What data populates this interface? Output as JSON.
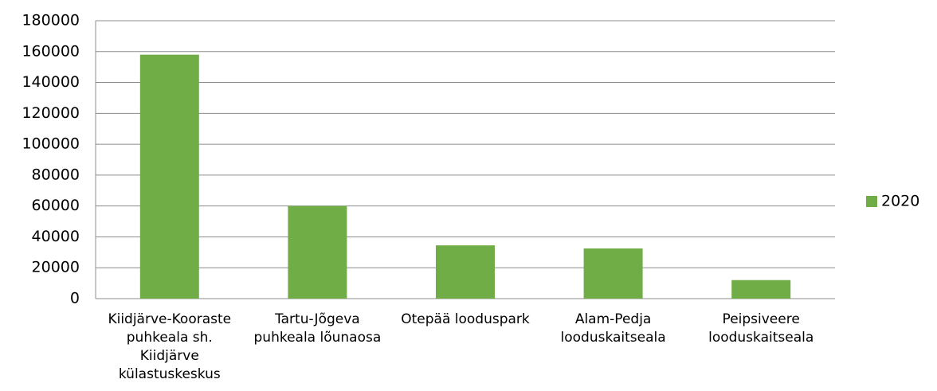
{
  "chart_data": {
    "type": "bar",
    "categories": [
      "Kiidjärve-Kooraste puhkeala sh. Kiidjärve külastuskeskus",
      "Tartu-Jõgeva puhkeala lõunaosa",
      "Otepää looduspark",
      "Alam-Pedja looduskaitseala",
      "Peipsiveere looduskaitseala"
    ],
    "series": [
      {
        "name": "2020",
        "color": "#70ad47",
        "values": [
          158000,
          60000,
          34500,
          32500,
          12000
        ]
      }
    ],
    "ylim": [
      0,
      180000
    ],
    "yticks": [
      0,
      20000,
      40000,
      60000,
      80000,
      100000,
      120000,
      140000,
      160000,
      180000
    ],
    "grid": true,
    "legend": "right"
  }
}
